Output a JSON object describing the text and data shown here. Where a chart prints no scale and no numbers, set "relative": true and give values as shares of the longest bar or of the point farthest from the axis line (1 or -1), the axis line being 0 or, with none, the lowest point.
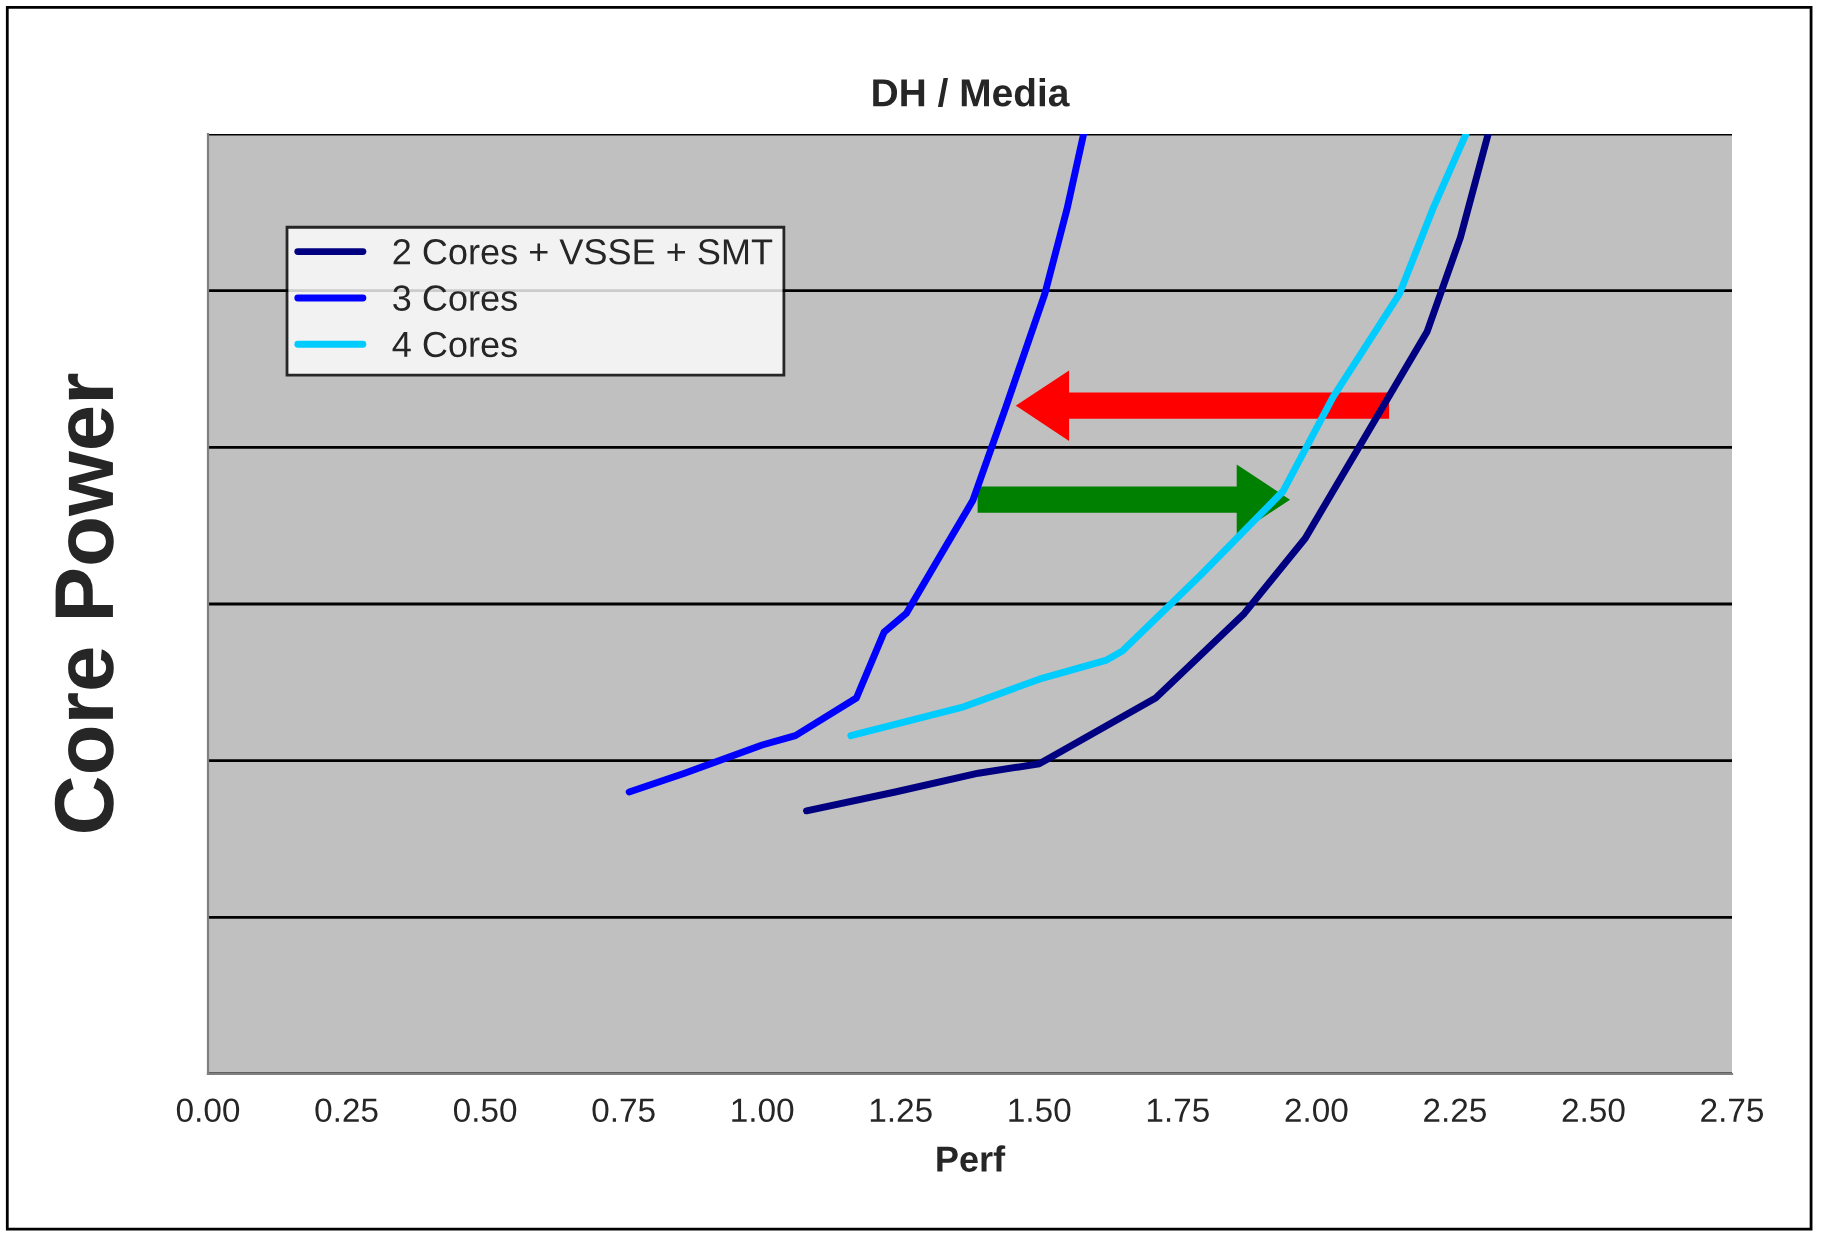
{
  "chart_data": {
    "type": "line",
    "title": "DH / Media",
    "xlabel": "Perf",
    "ylabel": "Core Power",
    "relative": true,
    "xlim": [
      0,
      2.75
    ],
    "xticks": [
      {
        "value": 0,
        "label": "0.00"
      },
      {
        "value": 0.25,
        "label": "0.25"
      },
      {
        "value": 0.5,
        "label": "0.50"
      },
      {
        "value": 0.75,
        "label": "0.75"
      },
      {
        "value": 1,
        "label": "1.00"
      },
      {
        "value": 1.25,
        "label": "1.25"
      },
      {
        "value": 1.5,
        "label": "1.50"
      },
      {
        "value": 1.75,
        "label": "1.75"
      },
      {
        "value": 2,
        "label": "2.00"
      },
      {
        "value": 2.25,
        "label": "2.25"
      },
      {
        "value": 2.5,
        "label": "2.50"
      },
      {
        "value": 2.75,
        "label": "2.75"
      }
    ],
    "grid": "y",
    "legend": "top left",
    "tick_labels": "x",
    "marker": "none",
    "line_style": "solid",
    "series": [
      {
        "name": "2 Cores + VSSE + SMT",
        "color": "#000080",
        "x": [
          1.08,
          1.24,
          1.39,
          1.5,
          1.56,
          1.71,
          1.87,
          1.98,
          2.1,
          2.2,
          2.26,
          2.31
        ],
        "values": [
          0.28,
          0.3,
          0.32,
          0.33,
          0.35,
          0.4,
          0.49,
          0.57,
          0.69,
          0.79,
          0.89,
          1.0
        ]
      },
      {
        "name": "3 Cores",
        "color": "#0000ff",
        "x": [
          0.76,
          0.86,
          1.0,
          1.06,
          1.17,
          1.22,
          1.26,
          1.33,
          1.38,
          1.44,
          1.51,
          1.55,
          1.58
        ],
        "values": [
          0.3,
          0.32,
          0.35,
          0.36,
          0.4,
          0.47,
          0.49,
          0.56,
          0.61,
          0.71,
          0.83,
          0.92,
          1.0
        ]
      },
      {
        "name": "4 Cores",
        "color": "#00ccff",
        "x": [
          1.16,
          1.36,
          1.5,
          1.62,
          1.65,
          1.79,
          1.94,
          2.03,
          2.15,
          2.21,
          2.27
        ],
        "values": [
          0.36,
          0.39,
          0.42,
          0.44,
          0.45,
          0.53,
          0.62,
          0.72,
          0.83,
          0.92,
          1.0
        ]
      }
    ]
  }
}
